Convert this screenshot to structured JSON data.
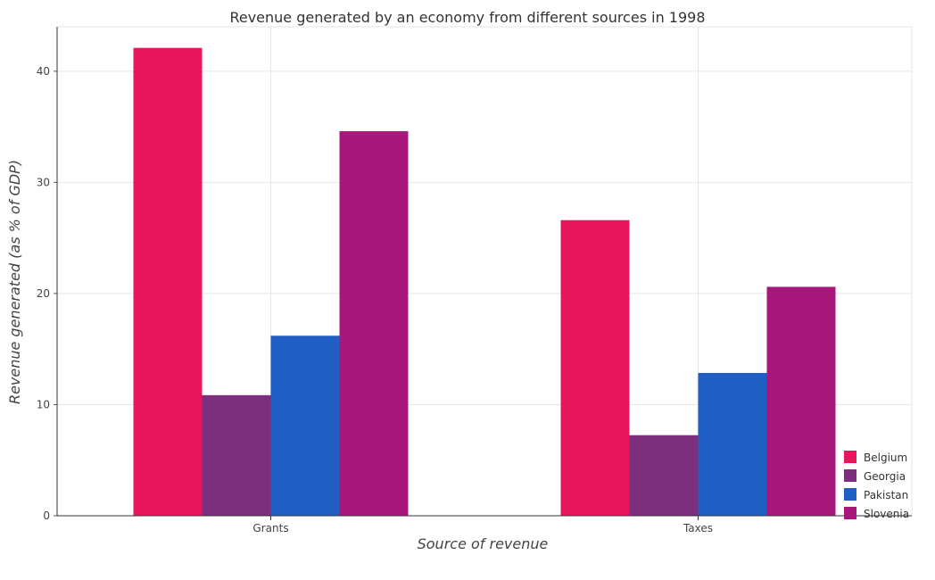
{
  "chart_data": {
    "type": "bar",
    "title": "Revenue generated by an economy from different sources in 1998",
    "xlabel": "Source of revenue",
    "ylabel": "Revenue generated (as % of GDP)",
    "categories": [
      "Grants",
      "Taxes"
    ],
    "ylim": [
      0,
      44
    ],
    "yticks": [
      0,
      10,
      20,
      30,
      40
    ],
    "grid": true,
    "legend_position": "bottom-right",
    "series": [
      {
        "name": "Belgium",
        "color": "#e8175d",
        "values": [
          42.1,
          26.6
        ]
      },
      {
        "name": "Georgia",
        "color": "#7b2f7c",
        "values": [
          10.85,
          7.25
        ]
      },
      {
        "name": "Pakistan",
        "color": "#1f5fc4",
        "values": [
          16.2,
          12.85
        ]
      },
      {
        "name": "Slovenia",
        "color": "#a8177c",
        "values": [
          34.6,
          20.6
        ]
      }
    ]
  }
}
